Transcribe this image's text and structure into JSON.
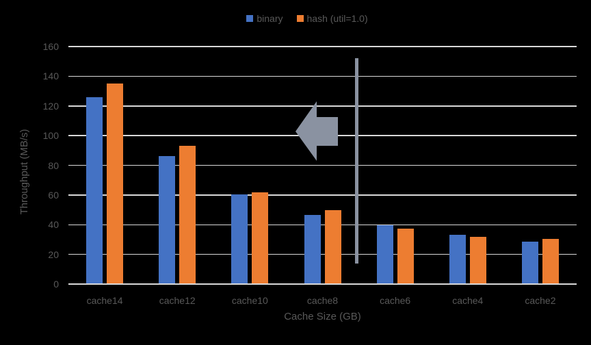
{
  "chart_data": {
    "type": "bar",
    "title": "",
    "categories": [
      "cache14",
      "cache12",
      "cache10",
      "cache8",
      "cache6",
      "cache4",
      "cache2"
    ],
    "series": [
      {
        "name": "binary",
        "color": "#4472C4",
        "values": [
          126,
          86,
          60.5,
          46.5,
          39.5,
          33,
          28.5
        ]
      },
      {
        "name": "hash (util=1.0)",
        "color": "#ED7D31",
        "values": [
          135,
          93,
          62,
          50,
          37.5,
          32,
          30.5
        ]
      }
    ],
    "xlabel": "Cache Size (GB)",
    "ylabel": "Throughput (MB/s)",
    "ylim": [
      0,
      160
    ],
    "yticks": [
      0,
      20,
      40,
      60,
      80,
      100,
      120,
      140,
      160
    ],
    "grid": true,
    "legend_position": "top-center",
    "annotations": [
      {
        "type": "block-arrow-left",
        "meaning": "shift toward smaller cache sizes",
        "color": "#8A92A1"
      },
      {
        "type": "vertical-divider-line",
        "position": "between cache8 and cache6",
        "color": "#8A92A1"
      }
    ]
  },
  "colors": {
    "background": "#000000",
    "grid": "#D9D9D9",
    "axis": "#D9D9D9",
    "text": "#595959",
    "annotation": "#8A92A1",
    "series_blue": "#4472C4",
    "series_orange": "#ED7D31"
  }
}
